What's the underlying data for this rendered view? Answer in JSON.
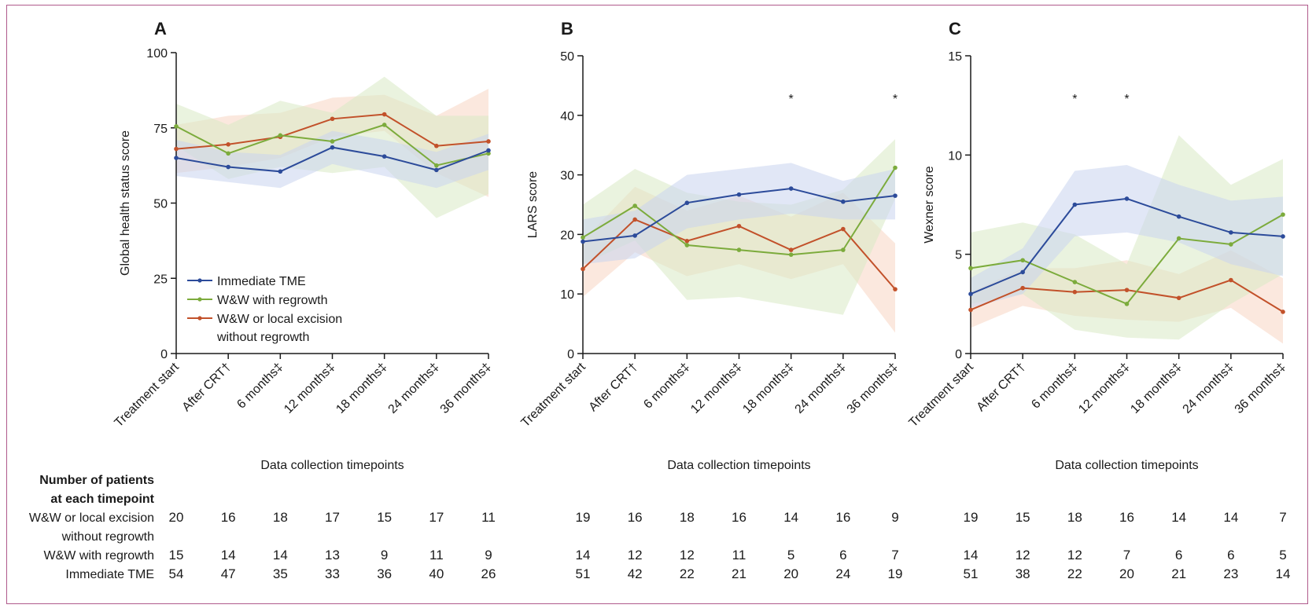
{
  "colors": {
    "immediate_tme": "#2c4b9a",
    "ww_regrowth": "#7cab3c",
    "ww_no_regrowth": "#c2512a",
    "immediate_tme_band": "#c9d3ee",
    "ww_regrowth_band": "#d8eac4",
    "ww_no_regrowth_band": "#f7d6c2"
  },
  "legend": {
    "immediate_tme": "Immediate TME",
    "ww_regrowth": "W&W with regrowth",
    "ww_no_regrowth_line1": "W&W or local excision",
    "ww_no_regrowth_line2": "without regrowth"
  },
  "chart_data": [
    {
      "type": "line",
      "panel": "A",
      "title": "A",
      "xlabel": "Data collection timepoints",
      "ylabel": "Global health status score",
      "ylim": [
        0,
        100
      ],
      "yticks": [
        0,
        25,
        50,
        75,
        100
      ],
      "categories": [
        "Treatment start",
        "After CRT†",
        "6 months‡",
        "12 months‡",
        "18 months‡",
        "24 months‡",
        "36 months‡"
      ],
      "significance": [],
      "series": [
        {
          "key": "immediate_tme",
          "name": "Immediate TME",
          "values": [
            65,
            62,
            60.5,
            68.5,
            65.5,
            61,
            67.5
          ],
          "lower": [
            59,
            57,
            55,
            63,
            59,
            55,
            61
          ],
          "upper": [
            71,
            67,
            66,
            74,
            71,
            67,
            73
          ]
        },
        {
          "key": "ww_regrowth",
          "name": "W&W with regrowth",
          "values": [
            75.5,
            66.5,
            72.5,
            70.5,
            76,
            62.5,
            66.5
          ],
          "lower": [
            69,
            58,
            62,
            60,
            62,
            45,
            53
          ],
          "upper": [
            83,
            76,
            84,
            80,
            92,
            79,
            79
          ]
        },
        {
          "key": "ww_no_regrowth",
          "name": "W&W or local excision without regrowth",
          "values": [
            68,
            69.5,
            72,
            78,
            79.5,
            69,
            70.5
          ],
          "lower": [
            60,
            62,
            65,
            72,
            74,
            60,
            52
          ],
          "upper": [
            76,
            79,
            80,
            85,
            86,
            79,
            88
          ]
        }
      ],
      "counts": {
        "ww_no_regrowth": [
          "20",
          "16",
          "18",
          "17",
          "15",
          "17",
          "11"
        ],
        "ww_regrowth": [
          "15",
          "14",
          "14",
          "13",
          "9",
          "11",
          "9"
        ],
        "immediate_tme": [
          "54",
          "47",
          "35",
          "33",
          "36",
          "40",
          "26"
        ]
      }
    },
    {
      "type": "line",
      "panel": "B",
      "title": "B",
      "xlabel": "Data collection timepoints",
      "ylabel": "LARS score",
      "ylim": [
        0,
        50
      ],
      "yticks": [
        0,
        10,
        20,
        30,
        40,
        50
      ],
      "categories": [
        "Treatment start",
        "After CRT†",
        "6 months‡",
        "12 months‡",
        "18 months‡",
        "24 months‡",
        "36 months‡"
      ],
      "significance": [
        {
          "index": 4,
          "label": "*"
        },
        {
          "index": 6,
          "label": "*"
        }
      ],
      "series": [
        {
          "key": "immediate_tme",
          "name": "Immediate TME",
          "values": [
            18.8,
            19.8,
            25.3,
            26.7,
            27.7,
            25.5,
            26.5
          ],
          "lower": [
            15,
            16,
            21,
            22.5,
            23.5,
            22.5,
            22.5
          ],
          "upper": [
            22.5,
            24,
            30,
            31,
            32,
            29,
            31
          ]
        },
        {
          "key": "ww_regrowth",
          "name": "W&W with regrowth",
          "values": [
            19.5,
            24.8,
            18.2,
            17.4,
            16.6,
            17.4,
            31.2
          ],
          "lower": [
            15,
            19,
            9,
            9.5,
            8,
            6.5,
            26
          ],
          "upper": [
            25,
            31,
            27,
            25.5,
            25,
            27.5,
            36
          ]
        },
        {
          "key": "ww_no_regrowth",
          "name": "W&W or local excision without regrowth",
          "values": [
            14.2,
            22.5,
            18.9,
            21.4,
            17.4,
            20.9,
            10.8
          ],
          "lower": [
            9.5,
            17,
            13,
            15,
            12.5,
            15,
            3.5
          ],
          "upper": [
            19,
            28,
            24,
            26.5,
            23,
            27,
            18.5
          ]
        }
      ],
      "counts": {
        "ww_no_regrowth": [
          "19",
          "16",
          "18",
          "16",
          "14",
          "16",
          "9"
        ],
        "ww_regrowth": [
          "14",
          "12",
          "12",
          "11",
          "5",
          "6",
          "7"
        ],
        "immediate_tme": [
          "51",
          "42",
          "22",
          "21",
          "20",
          "24",
          "19"
        ]
      }
    },
    {
      "type": "line",
      "panel": "C",
      "title": "C",
      "xlabel": "Data collection timepoints",
      "ylabel": "Wexner score",
      "ylim": [
        0,
        15
      ],
      "yticks": [
        0,
        5,
        10,
        15
      ],
      "categories": [
        "Treatment start",
        "After CRT†",
        "6 months‡",
        "12 months‡",
        "18 months‡",
        "24 months‡",
        "36 months‡"
      ],
      "significance": [
        {
          "index": 2,
          "label": "*"
        },
        {
          "index": 3,
          "label": "*"
        }
      ],
      "series": [
        {
          "key": "immediate_tme",
          "name": "Immediate TME",
          "values": [
            3.0,
            4.1,
            7.5,
            7.8,
            6.9,
            6.1,
            5.9
          ],
          "lower": [
            2.3,
            3.0,
            5.9,
            6.1,
            5.6,
            4.5,
            3.9
          ],
          "upper": [
            3.8,
            5.3,
            9.2,
            9.5,
            8.5,
            7.7,
            7.9
          ]
        },
        {
          "key": "ww_regrowth",
          "name": "W&W with regrowth",
          "values": [
            4.3,
            4.7,
            3.6,
            2.5,
            5.8,
            5.5,
            7.0
          ],
          "lower": [
            2.5,
            3.0,
            1.2,
            0.8,
            0.7,
            2.5,
            4.0
          ],
          "upper": [
            6.1,
            6.6,
            6.0,
            4.5,
            11.0,
            8.5,
            9.8
          ]
        },
        {
          "key": "ww_no_regrowth",
          "name": "W&W or local excision without regrowth",
          "values": [
            2.2,
            3.3,
            3.1,
            3.2,
            2.8,
            3.7,
            2.1
          ],
          "lower": [
            1.3,
            2.4,
            1.9,
            1.7,
            1.6,
            2.3,
            0.5
          ],
          "upper": [
            3.1,
            4.3,
            4.3,
            4.7,
            4.0,
            5.2,
            3.8
          ]
        }
      ],
      "counts": {
        "ww_no_regrowth": [
          "19",
          "15",
          "18",
          "16",
          "14",
          "14",
          "7"
        ],
        "ww_regrowth": [
          "14",
          "12",
          "12",
          "7",
          "6",
          "6",
          "5"
        ],
        "immediate_tme": [
          "51",
          "38",
          "22",
          "20",
          "21",
          "23",
          "14"
        ]
      }
    }
  ],
  "patient_table": {
    "heading_line1": "Number of patients",
    "heading_line2": "at each timepoint",
    "rows": [
      {
        "key": "ww_no_regrowth",
        "label_line1": "W&W or local excision",
        "label_line2": "without regrowth"
      },
      {
        "key": "ww_regrowth",
        "label_line1": "W&W with regrowth",
        "label_line2": ""
      },
      {
        "key": "immediate_tme",
        "label_line1": "Immediate TME",
        "label_line2": ""
      }
    ]
  }
}
